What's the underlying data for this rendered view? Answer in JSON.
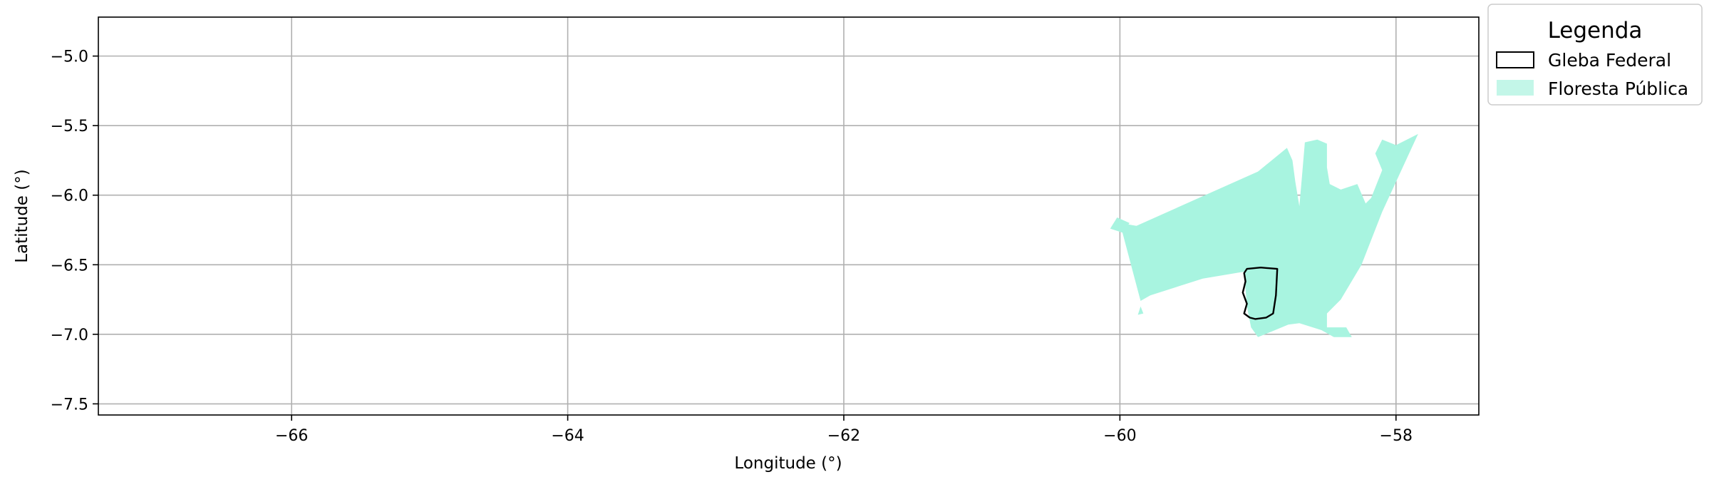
{
  "chart_data": {
    "type": "map",
    "title": "",
    "xlabel": "Longitude (°)",
    "ylabel": "Latitude (°)",
    "xlim": [
      -67.4,
      -57.4
    ],
    "ylim": [
      -7.58,
      -4.72
    ],
    "xticks": [
      -66,
      -64,
      -62,
      -60,
      -58
    ],
    "yticks": [
      -5.0,
      -5.5,
      -6.0,
      -6.5,
      -7.0,
      -7.5
    ],
    "xtick_labels": [
      "−66",
      "−64",
      "−62",
      "−60",
      "−58"
    ],
    "ytick_labels": [
      "−5.0",
      "−5.5",
      "−6.0",
      "−6.5",
      "−7.0",
      "−7.5"
    ],
    "grid": true,
    "legend": {
      "title": "Legenda",
      "placement": "outside-top-right",
      "entries": [
        {
          "label": "Gleba Federal",
          "style": "outline",
          "color": "#000000"
        },
        {
          "label": "Floresta Pública",
          "style": "fill",
          "color": "#a8f4e0"
        }
      ]
    },
    "layers": [
      {
        "name": "Floresta Pública",
        "fill": "#a8f4e0",
        "polygons": [
          [
            [
              -59.88,
              -6.22
            ],
            [
              -59.0,
              -5.83
            ],
            [
              -58.79,
              -5.66
            ],
            [
              -58.75,
              -5.75
            ],
            [
              -58.73,
              -5.9
            ],
            [
              -58.7,
              -6.08
            ],
            [
              -58.68,
              -5.85
            ],
            [
              -58.66,
              -5.62
            ],
            [
              -58.57,
              -5.6
            ],
            [
              -58.5,
              -5.63
            ],
            [
              -58.5,
              -5.8
            ],
            [
              -58.48,
              -5.92
            ],
            [
              -58.4,
              -5.96
            ],
            [
              -58.28,
              -5.92
            ],
            [
              -58.22,
              -6.06
            ],
            [
              -58.18,
              -6.02
            ],
            [
              -58.1,
              -5.82
            ],
            [
              -58.15,
              -5.7
            ],
            [
              -58.1,
              -5.6
            ],
            [
              -58.0,
              -5.64
            ],
            [
              -57.84,
              -5.56
            ],
            [
              -58.1,
              -6.12
            ],
            [
              -58.25,
              -6.5
            ],
            [
              -58.4,
              -6.75
            ],
            [
              -58.5,
              -6.85
            ],
            [
              -58.5,
              -6.95
            ],
            [
              -58.36,
              -6.95
            ],
            [
              -58.32,
              -7.02
            ],
            [
              -58.45,
              -7.02
            ],
            [
              -58.54,
              -6.97
            ],
            [
              -58.7,
              -6.92
            ],
            [
              -58.78,
              -6.93
            ],
            [
              -58.9,
              -6.98
            ],
            [
              -59.0,
              -7.02
            ],
            [
              -59.05,
              -6.95
            ],
            [
              -59.08,
              -6.8
            ],
            [
              -59.1,
              -6.55
            ],
            [
              -59.4,
              -6.6
            ],
            [
              -59.78,
              -6.72
            ],
            [
              -59.85,
              -6.76
            ],
            [
              -60.0,
              -6.2
            ],
            [
              -59.88,
              -6.22
            ]
          ],
          [
            [
              -60.02,
              -6.16
            ],
            [
              -59.93,
              -6.2
            ],
            [
              -59.98,
              -6.27
            ],
            [
              -60.07,
              -6.24
            ],
            [
              -60.02,
              -6.16
            ]
          ],
          [
            [
              -59.85,
              -6.8
            ],
            [
              -59.83,
              -6.85
            ],
            [
              -59.87,
              -6.86
            ],
            [
              -59.85,
              -6.8
            ]
          ]
        ]
      },
      {
        "name": "Gleba Federal",
        "stroke": "#000000",
        "polygons": [
          [
            [
              -59.08,
              -6.53
            ],
            [
              -58.98,
              -6.52
            ],
            [
              -58.86,
              -6.53
            ],
            [
              -58.87,
              -6.72
            ],
            [
              -58.89,
              -6.85
            ],
            [
              -58.94,
              -6.88
            ],
            [
              -59.02,
              -6.89
            ],
            [
              -59.06,
              -6.88
            ],
            [
              -59.1,
              -6.85
            ],
            [
              -59.08,
              -6.78
            ],
            [
              -59.11,
              -6.7
            ],
            [
              -59.09,
              -6.62
            ],
            [
              -59.1,
              -6.56
            ],
            [
              -59.08,
              -6.53
            ]
          ]
        ]
      }
    ]
  }
}
